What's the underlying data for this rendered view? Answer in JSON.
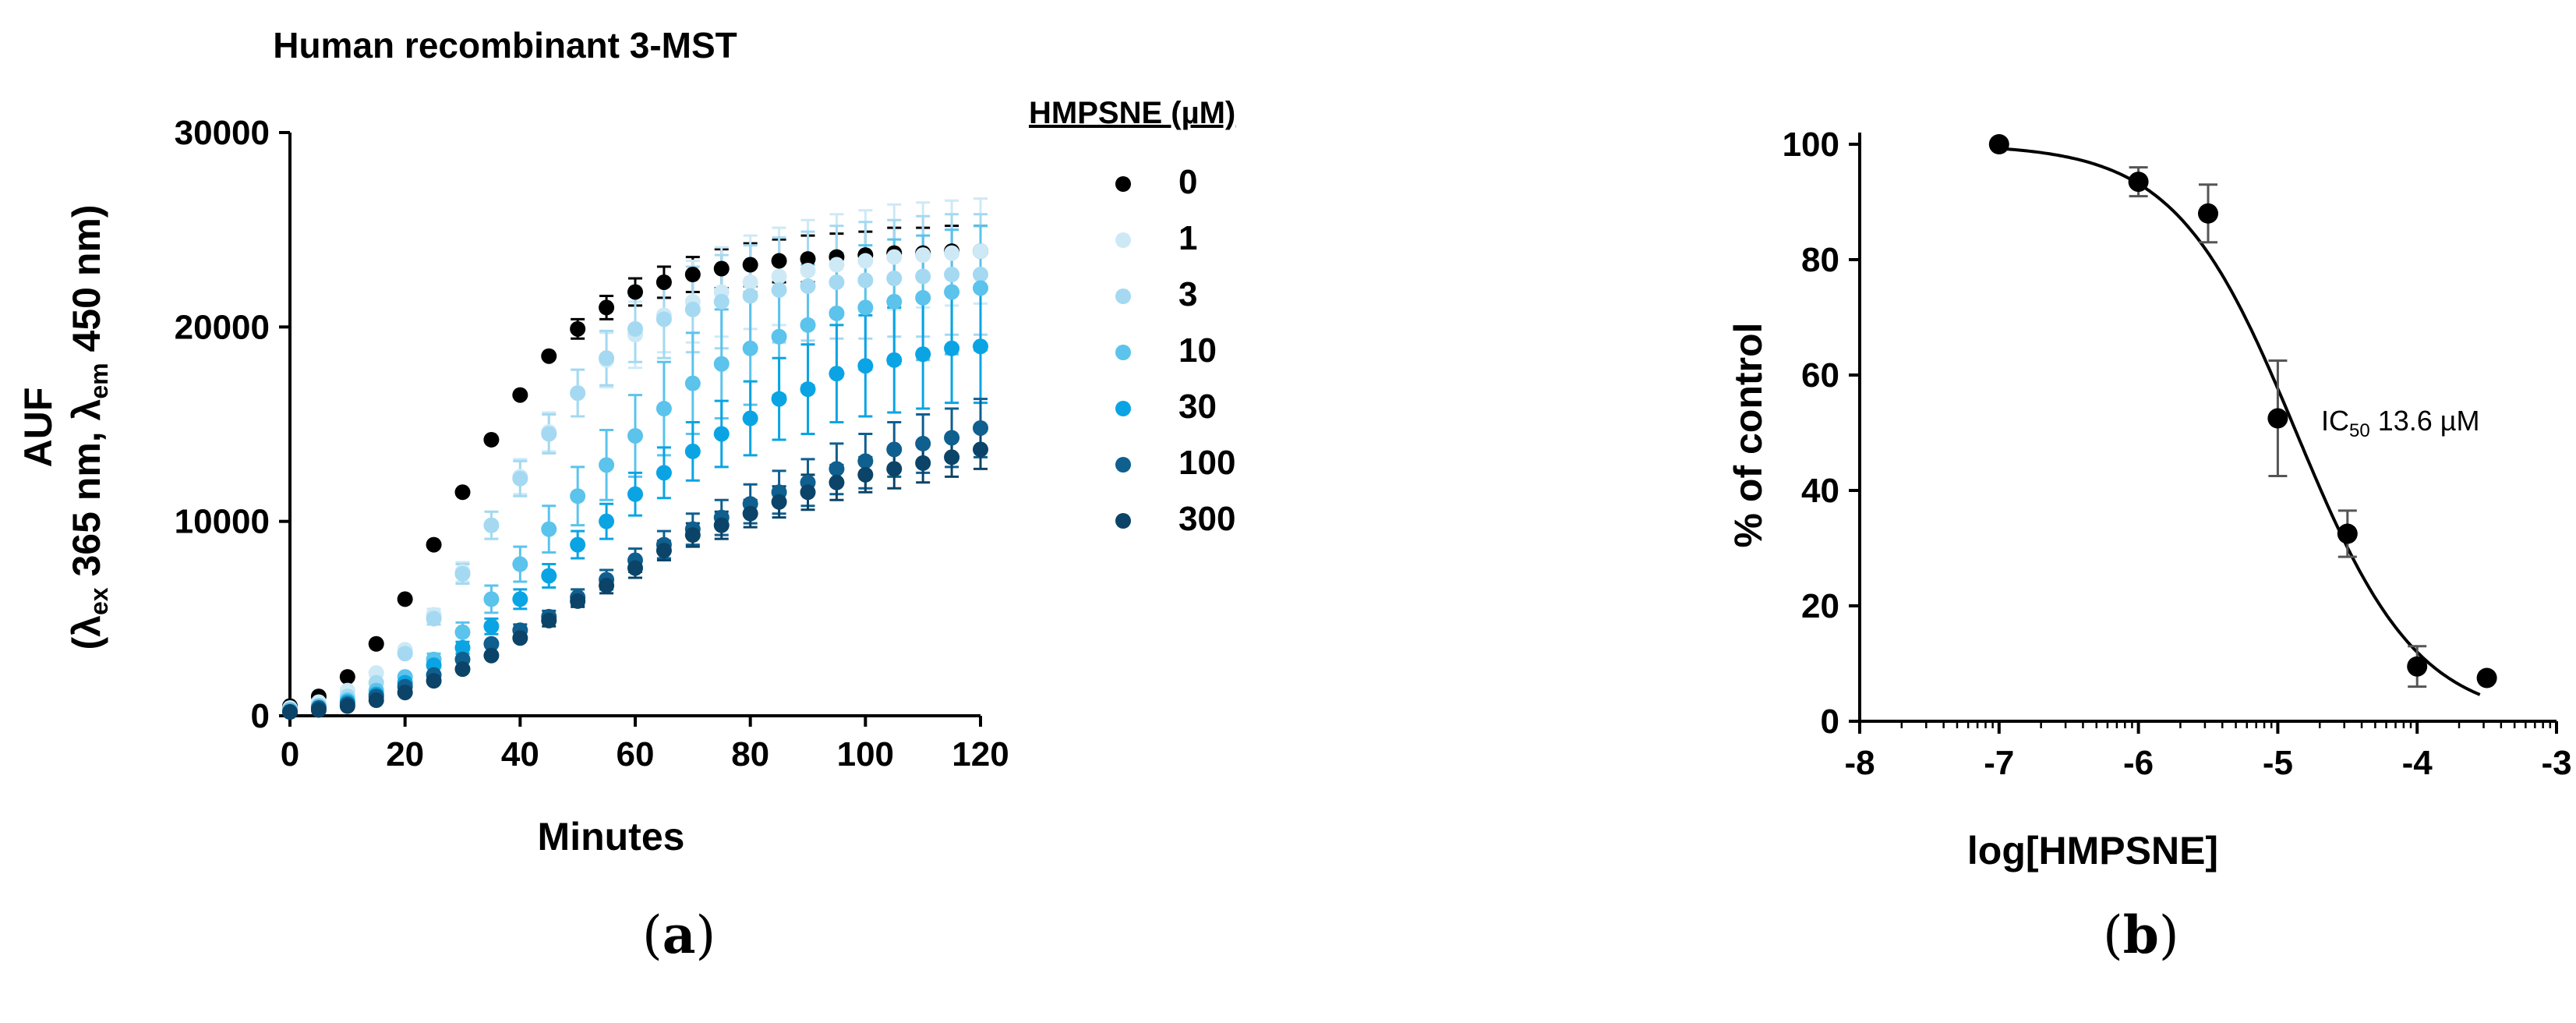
{
  "chart_data": [
    {
      "type": "scatter",
      "panel": "(a)",
      "panel_letter": "a",
      "title": "Human recombinant 3-MST",
      "xlabel": "Minutes",
      "ylabel": {
        "prefix": "AUF",
        "line2": "(λex 365 nm, λem 450 nm)",
        "lambda": "λ",
        "ex": "ex",
        "em": "em",
        "nm365": " 365 nm, ",
        "nm450": " 450 nm)",
        "open": "("
      },
      "xlim": [
        0,
        120
      ],
      "ylim": [
        0,
        30000
      ],
      "xticks": [
        "0",
        "20",
        "40",
        "60",
        "80",
        "100",
        "120"
      ],
      "yticks": [
        "0",
        "10000",
        "20000",
        "30000"
      ],
      "legend_title": "HMPSNE (µM)",
      "legend_position": "right",
      "x": [
        0,
        5,
        10,
        15,
        20,
        25,
        30,
        35,
        40,
        45,
        50,
        55,
        60,
        65,
        70,
        75,
        80,
        85,
        90,
        95,
        100,
        105,
        110,
        115,
        120
      ],
      "series": [
        {
          "name": "0",
          "color": "#000000",
          "values": [
            500,
            1000,
            2000,
            3700,
            6000,
            8800,
            11500,
            14200,
            16500,
            18500,
            19900,
            21000,
            21800,
            22300,
            22700,
            23000,
            23200,
            23400,
            23500,
            23600,
            23700,
            23800,
            23800,
            23900,
            23900
          ],
          "errors": [
            0,
            0,
            0,
            0,
            0,
            0,
            0,
            0,
            0,
            0,
            500,
            600,
            700,
            800,
            900,
            1000,
            1100,
            1100,
            1200,
            1200,
            1200,
            1300,
            1300,
            1300,
            1300
          ]
        },
        {
          "name": "1",
          "color": "#cde9f6",
          "values": [
            400,
            700,
            1300,
            2200,
            3400,
            5200,
            7400,
            9800,
            12300,
            14600,
            16600,
            18300,
            19600,
            20600,
            21300,
            21800,
            22300,
            22600,
            22900,
            23200,
            23400,
            23600,
            23700,
            23800,
            23900
          ],
          "errors": [
            0,
            0,
            0,
            0,
            0,
            300,
            500,
            700,
            900,
            1000,
            1200,
            1400,
            1700,
            1900,
            2100,
            2300,
            2400,
            2500,
            2600,
            2600,
            2600,
            2700,
            2700,
            2700,
            2700
          ]
        },
        {
          "name": "3",
          "color": "#a4d9f1",
          "values": [
            300,
            500,
            1000,
            1700,
            3200,
            5000,
            7300,
            9800,
            12200,
            14500,
            16600,
            18400,
            19900,
            20400,
            20900,
            21300,
            21600,
            21900,
            22100,
            22300,
            22400,
            22500,
            22600,
            22700,
            22700
          ],
          "errors": [
            0,
            0,
            0,
            0,
            0,
            300,
            500,
            700,
            900,
            1000,
            1200,
            1400,
            1700,
            2000,
            2200,
            2400,
            2600,
            2700,
            2800,
            2900,
            3000,
            3000,
            3100,
            3100,
            3100
          ]
        },
        {
          "name": "10",
          "color": "#5bc3ec",
          "values": [
            300,
            500,
            800,
            1300,
            2000,
            2900,
            4300,
            6000,
            7800,
            9600,
            11300,
            12900,
            14400,
            15800,
            17100,
            18100,
            18900,
            19500,
            20100,
            20700,
            21000,
            21300,
            21500,
            21800,
            22000
          ],
          "errors": [
            0,
            0,
            0,
            0,
            0,
            300,
            500,
            700,
            900,
            1200,
            1500,
            1800,
            2100,
            2400,
            2600,
            2800,
            2900,
            3000,
            3100,
            3100,
            3200,
            3200,
            3200,
            3200,
            3200
          ]
        },
        {
          "name": "30",
          "color": "#0aa4e4",
          "values": [
            200,
            400,
            700,
            1100,
            1700,
            2600,
            3500,
            4600,
            6000,
            7200,
            8800,
            10000,
            11400,
            12500,
            13600,
            14500,
            15300,
            16300,
            16800,
            17600,
            18000,
            18300,
            18600,
            18900,
            19000
          ],
          "errors": [
            0,
            0,
            0,
            0,
            0,
            0,
            300,
            400,
            500,
            600,
            700,
            900,
            1100,
            1300,
            1500,
            1700,
            1900,
            2100,
            2300,
            2500,
            2600,
            2700,
            2800,
            2800,
            2900
          ]
        },
        {
          "name": "100",
          "color": "#0f5f8f",
          "values": [
            200,
            400,
            600,
            1000,
            1500,
            2100,
            2900,
            3700,
            4400,
            5100,
            6100,
            7000,
            8000,
            8800,
            9600,
            10200,
            10900,
            11500,
            12000,
            12700,
            13100,
            13700,
            14000,
            14300,
            14800
          ],
          "errors": [
            0,
            0,
            0,
            0,
            0,
            0,
            0,
            0,
            300,
            300,
            400,
            500,
            600,
            700,
            800,
            900,
            1000,
            1100,
            1200,
            1300,
            1400,
            1400,
            1500,
            1500,
            1500
          ]
        },
        {
          "name": "300",
          "color": "#0b4468",
          "values": [
            200,
            300,
            500,
            800,
            1200,
            1800,
            2400,
            3100,
            4000,
            4900,
            5900,
            6700,
            7600,
            8500,
            9300,
            9800,
            10400,
            11000,
            11500,
            12000,
            12400,
            12700,
            13000,
            13300,
            13700
          ],
          "errors": [
            0,
            0,
            0,
            0,
            0,
            0,
            0,
            0,
            0,
            300,
            300,
            400,
            500,
            500,
            600,
            700,
            700,
            800,
            900,
            900,
            900,
            1000,
            1000,
            1000,
            1000
          ]
        }
      ]
    },
    {
      "type": "scatter",
      "panel": "(b)",
      "panel_letter": "b",
      "xlabel": "log[HMPSNE]",
      "ylabel": "% of control",
      "xlim": [
        -8,
        -3
      ],
      "ylim": [
        0,
        100
      ],
      "xticks": [
        "-8",
        "-7",
        "-6",
        "-5",
        "-4",
        "-3"
      ],
      "yticks": [
        "0",
        "20",
        "40",
        "60",
        "80",
        "100"
      ],
      "points": [
        {
          "x": -7.0,
          "y": 100.0,
          "err": 0
        },
        {
          "x": -6.0,
          "y": 93.5,
          "err": 2.5
        },
        {
          "x": -5.5,
          "y": 88.0,
          "err": 5.0
        },
        {
          "x": -5.0,
          "y": 52.5,
          "err": 10.0
        },
        {
          "x": -4.5,
          "y": 32.5,
          "err": 4.0
        },
        {
          "x": -4.0,
          "y": 9.5,
          "err": 3.5
        },
        {
          "x": -3.5,
          "y": 7.5,
          "err": 0
        }
      ],
      "fit": {
        "model": "four-parameter logistic (inhibition)",
        "top": 100,
        "bottom": 0,
        "log_ic50": -4.866,
        "hill_slope": -1.0,
        "x_range": [
          -7.0,
          -3.55
        ]
      },
      "annotation": {
        "text_prefix": "IC",
        "subscript": "50",
        "text_suffix": " 13.6 µM",
        "full": "IC50 13.6 µM"
      }
    }
  ]
}
